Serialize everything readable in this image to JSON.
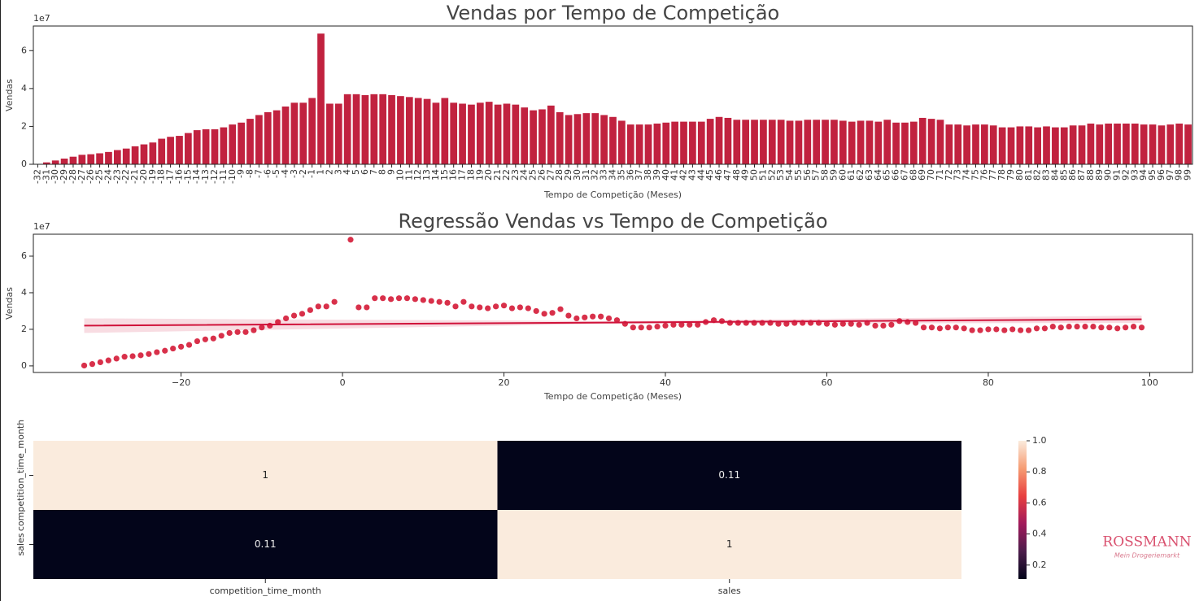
{
  "chart_data": [
    {
      "type": "bar",
      "title": "Vendas por Tempo de Competição",
      "xlabel": "Tempo de Competição (Meses)",
      "ylabel": "Vendas",
      "offset_label": "1e7",
      "color": "#c1223f",
      "categories": [
        -32,
        -31,
        -30,
        -29,
        -28,
        -27,
        -26,
        -25,
        -24,
        -23,
        -22,
        -21,
        -20,
        -19,
        -18,
        -17,
        -16,
        -15,
        -14,
        -13,
        -12,
        -11,
        -10,
        -9,
        -8,
        -7,
        -6,
        -5,
        -4,
        -3,
        -2,
        -1,
        1,
        2,
        3,
        4,
        5,
        6,
        7,
        8,
        9,
        10,
        11,
        12,
        13,
        14,
        15,
        16,
        17,
        18,
        19,
        20,
        21,
        22,
        23,
        24,
        25,
        26,
        27,
        28,
        29,
        30,
        31,
        32,
        33,
        34,
        35,
        36,
        37,
        38,
        39,
        40,
        41,
        42,
        43,
        44,
        45,
        46,
        47,
        48,
        49,
        50,
        51,
        52,
        53,
        54,
        55,
        56,
        57,
        58,
        59,
        60,
        61,
        62,
        63,
        64,
        65,
        66,
        67,
        68,
        69,
        70,
        71,
        72,
        73,
        74,
        75,
        76,
        77,
        78,
        79,
        80,
        81,
        82,
        83,
        84,
        85,
        86,
        87,
        88,
        89,
        90,
        91,
        92,
        93,
        94,
        95,
        96,
        97,
        98,
        99
      ],
      "values": [
        0.02,
        0.1,
        0.2,
        0.3,
        0.4,
        0.5,
        0.53,
        0.58,
        0.65,
        0.75,
        0.83,
        0.95,
        1.05,
        1.15,
        1.35,
        1.45,
        1.5,
        1.65,
        1.8,
        1.85,
        1.85,
        1.95,
        2.1,
        2.2,
        2.4,
        2.6,
        2.75,
        2.85,
        3.05,
        3.25,
        3.25,
        3.5,
        6.9,
        3.2,
        3.2,
        3.7,
        3.7,
        3.65,
        3.7,
        3.7,
        3.65,
        3.6,
        3.55,
        3.5,
        3.45,
        3.25,
        3.5,
        3.25,
        3.2,
        3.15,
        3.25,
        3.3,
        3.15,
        3.2,
        3.15,
        3.0,
        2.85,
        2.9,
        3.1,
        2.75,
        2.6,
        2.65,
        2.7,
        2.7,
        2.6,
        2.5,
        2.3,
        2.1,
        2.1,
        2.1,
        2.15,
        2.2,
        2.25,
        2.25,
        2.25,
        2.25,
        2.4,
        2.5,
        2.45,
        2.35,
        2.35,
        2.35,
        2.35,
        2.35,
        2.35,
        2.3,
        2.3,
        2.35,
        2.35,
        2.35,
        2.35,
        2.3,
        2.25,
        2.3,
        2.3,
        2.25,
        2.35,
        2.2,
        2.2,
        2.25,
        2.45,
        2.4,
        2.35,
        2.1,
        2.1,
        2.05,
        2.1,
        2.1,
        2.05,
        1.95,
        1.95,
        2.0,
        2.0,
        1.95,
        2.0,
        1.95,
        1.95,
        2.05,
        2.05,
        2.15,
        2.1,
        2.15,
        2.15,
        2.15,
        2.15,
        2.1,
        2.1,
        2.05,
        2.1,
        2.15,
        2.1
      ],
      "ylim": [
        0,
        7.3
      ],
      "yticks": [
        0,
        2,
        4,
        6
      ]
    },
    {
      "type": "scatter",
      "title": "Regressão Vendas vs Tempo de Competição",
      "xlabel": "Tempo de Competição (Meses)",
      "ylabel": "Vendas",
      "offset_label": "1e7",
      "color": "#d8304a",
      "x": [
        -32,
        -31,
        -30,
        -29,
        -28,
        -27,
        -26,
        -25,
        -24,
        -23,
        -22,
        -21,
        -20,
        -19,
        -18,
        -17,
        -16,
        -15,
        -14,
        -13,
        -12,
        -11,
        -10,
        -9,
        -8,
        -7,
        -6,
        -5,
        -4,
        -3,
        -2,
        -1,
        1,
        2,
        3,
        4,
        5,
        6,
        7,
        8,
        9,
        10,
        11,
        12,
        13,
        14,
        15,
        16,
        17,
        18,
        19,
        20,
        21,
        22,
        23,
        24,
        25,
        26,
        27,
        28,
        29,
        30,
        31,
        32,
        33,
        34,
        35,
        36,
        37,
        38,
        39,
        40,
        41,
        42,
        43,
        44,
        45,
        46,
        47,
        48,
        49,
        50,
        51,
        52,
        53,
        54,
        55,
        56,
        57,
        58,
        59,
        60,
        61,
        62,
        63,
        64,
        65,
        66,
        67,
        68,
        69,
        70,
        71,
        72,
        73,
        74,
        75,
        76,
        77,
        78,
        79,
        80,
        81,
        82,
        83,
        84,
        85,
        86,
        87,
        88,
        89,
        90,
        91,
        92,
        93,
        94,
        95,
        96,
        97,
        98,
        99
      ],
      "values": [
        0.02,
        0.1,
        0.2,
        0.3,
        0.4,
        0.5,
        0.53,
        0.58,
        0.65,
        0.75,
        0.83,
        0.95,
        1.05,
        1.15,
        1.35,
        1.45,
        1.5,
        1.65,
        1.8,
        1.85,
        1.85,
        1.95,
        2.1,
        2.2,
        2.4,
        2.6,
        2.75,
        2.85,
        3.05,
        3.25,
        3.25,
        3.5,
        6.9,
        3.2,
        3.2,
        3.7,
        3.7,
        3.65,
        3.7,
        3.7,
        3.65,
        3.6,
        3.55,
        3.5,
        3.45,
        3.25,
        3.5,
        3.25,
        3.2,
        3.15,
        3.25,
        3.3,
        3.15,
        3.2,
        3.15,
        3.0,
        2.85,
        2.9,
        3.1,
        2.75,
        2.6,
        2.65,
        2.7,
        2.7,
        2.6,
        2.5,
        2.3,
        2.1,
        2.1,
        2.1,
        2.15,
        2.2,
        2.25,
        2.25,
        2.25,
        2.25,
        2.4,
        2.5,
        2.45,
        2.35,
        2.35,
        2.35,
        2.35,
        2.35,
        2.35,
        2.3,
        2.3,
        2.35,
        2.35,
        2.35,
        2.35,
        2.3,
        2.25,
        2.3,
        2.3,
        2.25,
        2.35,
        2.2,
        2.2,
        2.25,
        2.45,
        2.4,
        2.35,
        2.1,
        2.1,
        2.05,
        2.1,
        2.1,
        2.05,
        1.95,
        1.95,
        2.0,
        2.0,
        1.95,
        2.0,
        1.95,
        1.95,
        2.05,
        2.05,
        2.15,
        2.1,
        2.15,
        2.15,
        2.15,
        2.15,
        2.1,
        2.1,
        2.05,
        2.1,
        2.15,
        2.1
      ],
      "fit": {
        "color": "#d0123a",
        "x": [
          -32,
          33,
          99
        ],
        "values": [
          2.2,
          2.37,
          2.55
        ],
        "lower": [
          1.8,
          2.3,
          2.35
        ],
        "upper": [
          2.6,
          2.45,
          2.75
        ]
      },
      "xlim": [
        -38.3,
        105.3
      ],
      "xticks": [
        {
          "value": -20,
          "label": "−20"
        },
        0,
        20,
        40,
        60,
        80,
        100
      ],
      "ylim": [
        -0.36,
        7.2
      ],
      "yticks": [
        0,
        2,
        4,
        6
      ]
    },
    {
      "type": "heatmap",
      "categories": [
        "competition_time_month",
        "sales"
      ],
      "values": [
        [
          1,
          0.11
        ],
        [
          0.11,
          1
        ]
      ],
      "value_labels": [
        [
          "1",
          "0.11"
        ],
        [
          "0.11",
          "1"
        ]
      ],
      "colorscale": [
        "#03051a",
        "#4c1d4b",
        "#a11a5b",
        "#e83f3f",
        "#f69c73",
        "#faebdd"
      ],
      "clim": [
        0.11,
        1
      ],
      "cticks": [
        0.2,
        0.4,
        0.6,
        0.8,
        {
          "value": 1,
          "label": "1.0"
        }
      ]
    }
  ],
  "logo": {
    "name": "ROSSMANN",
    "tagline": "Mein Drogeriemarkt"
  }
}
